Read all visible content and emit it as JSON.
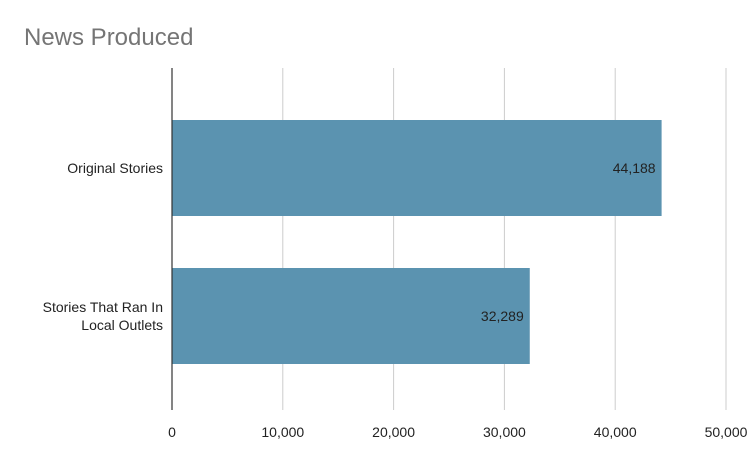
{
  "chart_data": {
    "type": "bar",
    "orientation": "horizontal",
    "title": "News Produced",
    "categories": [
      [
        "Original Stories"
      ],
      [
        "Stories That Ran In",
        "Local Outlets"
      ]
    ],
    "values": [
      44188,
      32289
    ],
    "data_labels": [
      "44,188",
      "32,289"
    ],
    "xlim": [
      0,
      50000
    ],
    "x_ticks": [
      0,
      10000,
      20000,
      30000,
      40000,
      50000
    ],
    "x_tick_labels": [
      "0",
      "10,000",
      "20,000",
      "30,000",
      "40,000",
      "50,000"
    ],
    "grid": true,
    "legend": "none",
    "bar_color": "#5b93b0",
    "grid_color": "#cccccc",
    "axis_color": "#333333"
  }
}
